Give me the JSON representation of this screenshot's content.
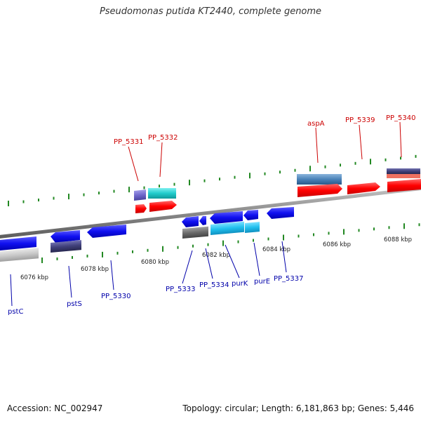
{
  "title": "Pseudomonas putida KT2440, complete genome",
  "accession": "Accession: NC_002947",
  "summary": "Topology: circular; Length: 6,181,863 bp; Genes: 5,446",
  "scale_labels": [
    "6076 kbp",
    "6078 kbp",
    "6080 kbp",
    "6082 kbp",
    "6084 kbp",
    "6086 kbp",
    "6088 kbp"
  ],
  "genes_top": [
    "PP_5331",
    "PP_5332",
    "aspA",
    "PP_5339",
    "PP_5340"
  ],
  "genes_bottom": [
    "pstC",
    "pstS",
    "PP_5330",
    "PP_5333",
    "PP_5334",
    "purK",
    "purE",
    "PP_5337"
  ],
  "colors": {
    "top_label": "#cc0000",
    "bottom_label": "#0000aa",
    "forward_gene": "#ff0000",
    "reverse_gene": "#0000ee",
    "backbone": "#808080",
    "tick": "#228822"
  }
}
